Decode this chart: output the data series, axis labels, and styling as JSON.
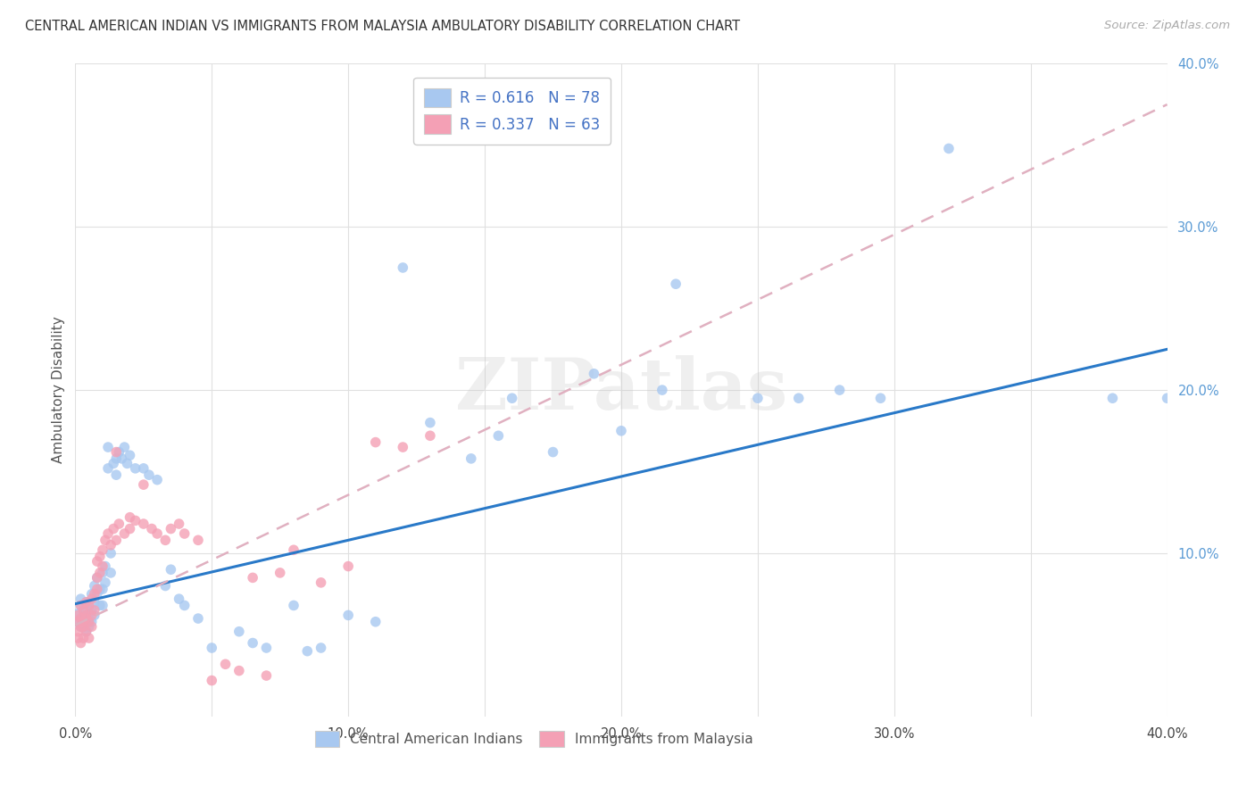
{
  "title": "CENTRAL AMERICAN INDIAN VS IMMIGRANTS FROM MALAYSIA AMBULATORY DISABILITY CORRELATION CHART",
  "source": "Source: ZipAtlas.com",
  "ylabel": "Ambulatory Disability",
  "xlim": [
    0.0,
    0.4
  ],
  "ylim": [
    0.0,
    0.4
  ],
  "xtick_labels": [
    "0.0%",
    "",
    "10.0%",
    "",
    "20.0%",
    "",
    "30.0%",
    "",
    "40.0%"
  ],
  "xtick_vals": [
    0.0,
    0.05,
    0.1,
    0.15,
    0.2,
    0.25,
    0.3,
    0.35,
    0.4
  ],
  "ytick_labels": [
    "10.0%",
    "20.0%",
    "30.0%",
    "40.0%"
  ],
  "ytick_vals": [
    0.1,
    0.2,
    0.3,
    0.4
  ],
  "legend_r1": "R = 0.616",
  "legend_n1": "N = 78",
  "legend_r2": "R = 0.337",
  "legend_n2": "N = 63",
  "color_blue": "#a8c8f0",
  "color_pink": "#f4a0b5",
  "line_blue": "#2979c8",
  "line_pink": "#e0b0c0",
  "watermark": "ZIPatlas",
  "blue_line_x": [
    0.0,
    0.4
  ],
  "blue_line_y": [
    0.069,
    0.225
  ],
  "pink_line_x": [
    0.0,
    0.4
  ],
  "pink_line_y": [
    0.056,
    0.375
  ],
  "blue_scatter_x": [
    0.001,
    0.001,
    0.002,
    0.002,
    0.002,
    0.003,
    0.003,
    0.003,
    0.003,
    0.004,
    0.004,
    0.004,
    0.005,
    0.005,
    0.005,
    0.005,
    0.006,
    0.006,
    0.006,
    0.007,
    0.007,
    0.007,
    0.008,
    0.008,
    0.009,
    0.009,
    0.01,
    0.01,
    0.01,
    0.011,
    0.011,
    0.012,
    0.012,
    0.013,
    0.013,
    0.014,
    0.015,
    0.015,
    0.016,
    0.017,
    0.018,
    0.019,
    0.02,
    0.022,
    0.025,
    0.027,
    0.03,
    0.033,
    0.035,
    0.038,
    0.04,
    0.045,
    0.05,
    0.06,
    0.065,
    0.07,
    0.08,
    0.085,
    0.09,
    0.1,
    0.11,
    0.12,
    0.13,
    0.145,
    0.155,
    0.16,
    0.175,
    0.19,
    0.2,
    0.215,
    0.22,
    0.25,
    0.265,
    0.28,
    0.295,
    0.32,
    0.38,
    0.4
  ],
  "blue_scatter_y": [
    0.063,
    0.058,
    0.068,
    0.055,
    0.072,
    0.06,
    0.055,
    0.065,
    0.058,
    0.062,
    0.07,
    0.052,
    0.068,
    0.058,
    0.063,
    0.055,
    0.075,
    0.065,
    0.058,
    0.08,
    0.07,
    0.062,
    0.085,
    0.075,
    0.078,
    0.068,
    0.088,
    0.078,
    0.068,
    0.092,
    0.082,
    0.165,
    0.152,
    0.1,
    0.088,
    0.155,
    0.158,
    0.148,
    0.162,
    0.158,
    0.165,
    0.155,
    0.16,
    0.152,
    0.152,
    0.148,
    0.145,
    0.08,
    0.09,
    0.072,
    0.068,
    0.06,
    0.042,
    0.052,
    0.045,
    0.042,
    0.068,
    0.04,
    0.042,
    0.062,
    0.058,
    0.275,
    0.18,
    0.158,
    0.172,
    0.195,
    0.162,
    0.21,
    0.175,
    0.2,
    0.265,
    0.195,
    0.195,
    0.2,
    0.195,
    0.348,
    0.195,
    0.195
  ],
  "pink_scatter_x": [
    0.001,
    0.001,
    0.001,
    0.001,
    0.002,
    0.002,
    0.002,
    0.002,
    0.003,
    0.003,
    0.003,
    0.003,
    0.004,
    0.004,
    0.004,
    0.004,
    0.005,
    0.005,
    0.005,
    0.006,
    0.006,
    0.006,
    0.007,
    0.007,
    0.008,
    0.008,
    0.008,
    0.009,
    0.009,
    0.01,
    0.01,
    0.011,
    0.012,
    0.013,
    0.014,
    0.015,
    0.016,
    0.018,
    0.02,
    0.022,
    0.025,
    0.028,
    0.03,
    0.033,
    0.035,
    0.038,
    0.04,
    0.045,
    0.05,
    0.055,
    0.06,
    0.065,
    0.07,
    0.075,
    0.08,
    0.09,
    0.1,
    0.11,
    0.12,
    0.13,
    0.015,
    0.02,
    0.025
  ],
  "pink_scatter_y": [
    0.052,
    0.048,
    0.062,
    0.058,
    0.055,
    0.045,
    0.068,
    0.06,
    0.058,
    0.048,
    0.065,
    0.055,
    0.06,
    0.052,
    0.07,
    0.062,
    0.068,
    0.058,
    0.048,
    0.072,
    0.062,
    0.055,
    0.075,
    0.065,
    0.095,
    0.085,
    0.078,
    0.098,
    0.088,
    0.102,
    0.092,
    0.108,
    0.112,
    0.105,
    0.115,
    0.108,
    0.118,
    0.112,
    0.115,
    0.12,
    0.118,
    0.115,
    0.112,
    0.108,
    0.115,
    0.118,
    0.112,
    0.108,
    0.022,
    0.032,
    0.028,
    0.085,
    0.025,
    0.088,
    0.102,
    0.082,
    0.092,
    0.168,
    0.165,
    0.172,
    0.162,
    0.122,
    0.142
  ]
}
